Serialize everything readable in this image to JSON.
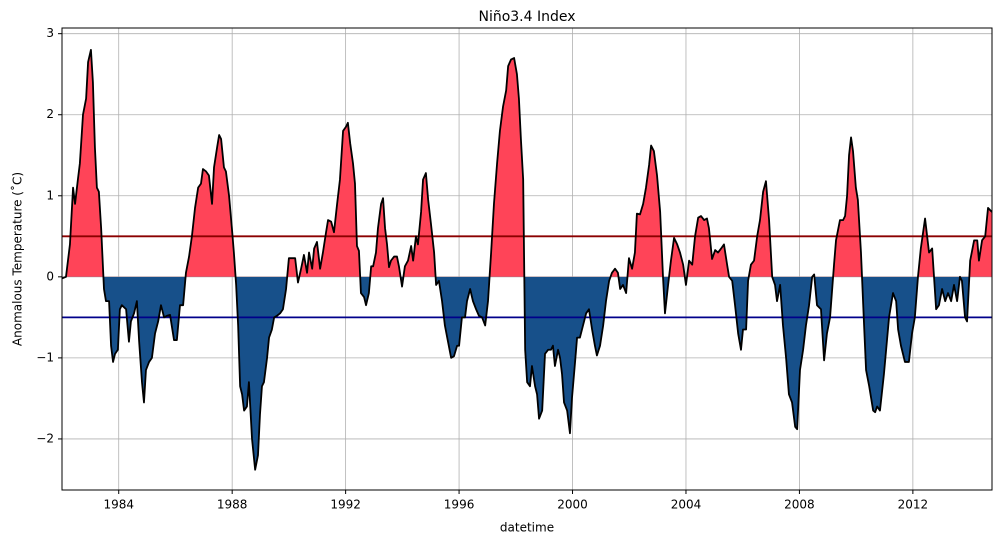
{
  "chart_data": {
    "type": "area_diverging",
    "title": "Niño3.4 Index",
    "x_label": "datetime",
    "y_label": "Anomalous Temperature (˚C)",
    "x": [
      1982.0,
      1982.14,
      1982.28,
      1982.39,
      1982.46,
      1982.56,
      1982.63,
      1982.74,
      1982.85,
      1982.92,
      1983.02,
      1983.09,
      1983.16,
      1983.23,
      1983.3,
      1983.38,
      1983.48,
      1983.55,
      1983.66,
      1983.73,
      1983.8,
      1983.87,
      1983.97,
      1984.04,
      1984.11,
      1984.26,
      1984.36,
      1984.43,
      1984.54,
      1984.64,
      1984.72,
      1984.82,
      1984.89,
      1984.96,
      1985.07,
      1985.17,
      1985.28,
      1985.39,
      1985.49,
      1985.6,
      1985.7,
      1985.81,
      1985.95,
      1986.05,
      1986.16,
      1986.27,
      1986.37,
      1986.48,
      1986.58,
      1986.69,
      1986.8,
      1986.9,
      1986.97,
      1987.08,
      1987.18,
      1987.29,
      1987.36,
      1987.47,
      1987.54,
      1987.61,
      1987.71,
      1987.78,
      1987.89,
      1987.99,
      1988.06,
      1988.14,
      1988.21,
      1988.28,
      1988.35,
      1988.42,
      1988.52,
      1988.59,
      1988.7,
      1988.81,
      1988.91,
      1988.98,
      1989.05,
      1989.12,
      1989.23,
      1989.3,
      1989.4,
      1989.48,
      1989.58,
      1989.69,
      1989.79,
      1989.9,
      1990.0,
      1990.11,
      1990.22,
      1990.32,
      1990.43,
      1990.53,
      1990.64,
      1990.71,
      1990.82,
      1990.89,
      1990.99,
      1991.1,
      1991.2,
      1991.31,
      1991.38,
      1991.49,
      1991.59,
      1991.7,
      1991.8,
      1991.91,
      1992.01,
      1992.08,
      1992.16,
      1992.26,
      1992.33,
      1992.4,
      1992.47,
      1992.54,
      1992.65,
      1992.72,
      1992.82,
      1992.9,
      1992.97,
      1993.07,
      1993.14,
      1993.25,
      1993.32,
      1993.39,
      1993.46,
      1993.53,
      1993.6,
      1993.71,
      1993.81,
      1993.88,
      1993.99,
      1994.09,
      1994.2,
      1994.31,
      1994.38,
      1994.48,
      1994.55,
      1994.66,
      1994.73,
      1994.83,
      1994.91,
      1995.01,
      1995.12,
      1995.19,
      1995.29,
      1995.4,
      1995.5,
      1995.61,
      1995.72,
      1995.82,
      1995.93,
      1996.0,
      1996.1,
      1996.21,
      1996.28,
      1996.39,
      1996.49,
      1996.6,
      1996.7,
      1996.81,
      1996.92,
      1997.02,
      1997.13,
      1997.23,
      1997.34,
      1997.44,
      1997.55,
      1997.66,
      1997.73,
      1997.83,
      1997.94,
      1998.04,
      1998.11,
      1998.18,
      1998.26,
      1998.33,
      1998.4,
      1998.5,
      1998.57,
      1998.68,
      1998.75,
      1998.82,
      1998.93,
      1999.03,
      1999.14,
      1999.24,
      1999.31,
      1999.38,
      1999.49,
      1999.56,
      1999.63,
      1999.7,
      1999.81,
      1999.91,
      1999.98,
      2000.09,
      2000.16,
      2000.26,
      2000.37,
      2000.48,
      2000.58,
      2000.69,
      2000.79,
      2000.86,
      2000.97,
      2001.08,
      2001.18,
      2001.29,
      2001.39,
      2001.5,
      2001.6,
      2001.68,
      2001.78,
      2001.89,
      2001.99,
      2002.1,
      2002.2,
      2002.27,
      2002.38,
      2002.49,
      2002.59,
      2002.7,
      2002.77,
      2002.87,
      2002.98,
      2003.09,
      2003.19,
      2003.26,
      2003.37,
      2003.47,
      2003.58,
      2003.69,
      2003.79,
      2003.9,
      2004.0,
      2004.11,
      2004.22,
      2004.32,
      2004.43,
      2004.53,
      2004.64,
      2004.74,
      2004.81,
      2004.92,
      2005.03,
      2005.13,
      2005.24,
      2005.34,
      2005.45,
      2005.52,
      2005.63,
      2005.73,
      2005.84,
      2005.94,
      2006.01,
      2006.12,
      2006.19,
      2006.29,
      2006.4,
      2006.51,
      2006.61,
      2006.72,
      2006.82,
      2006.93,
      2007.04,
      2007.14,
      2007.21,
      2007.32,
      2007.42,
      2007.53,
      2007.63,
      2007.74,
      2007.85,
      2007.92,
      2008.02,
      2008.13,
      2008.23,
      2008.34,
      2008.45,
      2008.52,
      2008.62,
      2008.76,
      2008.87,
      2008.97,
      2009.08,
      2009.22,
      2009.29,
      2009.43,
      2009.54,
      2009.61,
      2009.68,
      2009.75,
      2009.82,
      2009.89,
      2009.99,
      2010.06,
      2010.17,
      2010.28,
      2010.35,
      2010.46,
      2010.6,
      2010.67,
      2010.74,
      2010.84,
      2010.98,
      2011.16,
      2011.3,
      2011.41,
      2011.48,
      2011.58,
      2011.72,
      2011.86,
      2011.97,
      2012.07,
      2012.18,
      2012.28,
      2012.43,
      2012.57,
      2012.68,
      2012.82,
      2012.92,
      2013.03,
      2013.14,
      2013.24,
      2013.35,
      2013.45,
      2013.56,
      2013.66,
      2013.73,
      2013.84,
      2013.91,
      2014.02,
      2014.16,
      2014.27,
      2014.33,
      2014.44,
      2014.55,
      2014.65,
      2014.79
    ],
    "values": [
      -0.02,
      0,
      0.4,
      1.1,
      0.9,
      1.2,
      1.4,
      2.0,
      2.2,
      2.65,
      2.8,
      2.4,
      1.6,
      1.1,
      1.05,
      0.6,
      -0.15,
      -0.3,
      -0.3,
      -0.85,
      -1.05,
      -0.95,
      -0.9,
      -0.4,
      -0.35,
      -0.4,
      -0.8,
      -0.55,
      -0.45,
      -0.3,
      -0.8,
      -1.3,
      -1.55,
      -1.15,
      -1.05,
      -1.0,
      -0.7,
      -0.55,
      -0.35,
      -0.5,
      -0.48,
      -0.47,
      -0.78,
      -0.78,
      -0.35,
      -0.35,
      0.05,
      0.25,
      0.5,
      0.85,
      1.1,
      1.15,
      1.33,
      1.3,
      1.25,
      0.9,
      1.35,
      1.6,
      1.75,
      1.7,
      1.35,
      1.3,
      1.0,
      0.6,
      0.3,
      -0.1,
      -0.6,
      -1.35,
      -1.45,
      -1.65,
      -1.6,
      -1.3,
      -2.0,
      -2.38,
      -2.2,
      -1.7,
      -1.35,
      -1.3,
      -1.0,
      -0.75,
      -0.65,
      -0.5,
      -0.48,
      -0.45,
      -0.4,
      -0.15,
      0.23,
      0.23,
      0.23,
      -0.07,
      0.1,
      0.27,
      0.05,
      0.3,
      0.1,
      0.35,
      0.43,
      0.1,
      0.3,
      0.55,
      0.7,
      0.68,
      0.55,
      0.9,
      1.2,
      1.8,
      1.85,
      1.9,
      1.65,
      1.4,
      1.15,
      0.38,
      0.32,
      -0.2,
      -0.25,
      -0.35,
      -0.2,
      0.13,
      0.13,
      0.3,
      0.6,
      0.9,
      0.97,
      0.6,
      0.4,
      0.12,
      0.2,
      0.25,
      0.25,
      0.13,
      -0.12,
      0.13,
      0.2,
      0.38,
      0.2,
      0.5,
      0.4,
      0.8,
      1.2,
      1.28,
      0.95,
      0.65,
      0.3,
      -0.1,
      -0.05,
      -0.3,
      -0.6,
      -0.8,
      -1.0,
      -0.98,
      -0.85,
      -0.85,
      -0.5,
      -0.5,
      -0.3,
      -0.15,
      -0.3,
      -0.4,
      -0.48,
      -0.5,
      -0.6,
      -0.3,
      0.3,
      0.9,
      1.4,
      1.8,
      2.1,
      2.3,
      2.6,
      2.68,
      2.7,
      2.5,
      2.2,
      1.7,
      1.2,
      -0.9,
      -1.3,
      -1.35,
      -1.1,
      -1.35,
      -1.45,
      -1.75,
      -1.65,
      -0.95,
      -0.9,
      -0.9,
      -0.85,
      -1.1,
      -0.9,
      -1.0,
      -1.2,
      -1.55,
      -1.65,
      -1.93,
      -1.5,
      -1.05,
      -0.75,
      -0.75,
      -0.6,
      -0.45,
      -0.4,
      -0.65,
      -0.85,
      -0.97,
      -0.85,
      -0.6,
      -0.3,
      -0.05,
      0.05,
      0.1,
      0.05,
      -0.15,
      -0.1,
      -0.2,
      0.23,
      0.1,
      0.3,
      0.78,
      0.77,
      0.9,
      1.1,
      1.38,
      1.62,
      1.55,
      1.25,
      0.8,
      0.0,
      -0.45,
      -0.1,
      0.2,
      0.48,
      0.4,
      0.3,
      0.15,
      -0.1,
      0.2,
      0.15,
      0.5,
      0.73,
      0.75,
      0.7,
      0.72,
      0.6,
      0.22,
      0.33,
      0.3,
      0.35,
      0.4,
      0.15,
      0.0,
      -0.05,
      -0.35,
      -0.7,
      -0.9,
      -0.65,
      -0.65,
      -0.05,
      0.15,
      0.2,
      0.5,
      0.7,
      1.05,
      1.18,
      0.7,
      0.0,
      -0.1,
      -0.3,
      -0.1,
      -0.6,
      -1.0,
      -1.45,
      -1.55,
      -1.85,
      -1.88,
      -1.15,
      -0.9,
      -0.6,
      -0.35,
      0.0,
      0.03,
      -0.35,
      -0.4,
      -1.03,
      -0.7,
      -0.5,
      0.15,
      0.45,
      0.7,
      0.7,
      0.75,
      1.0,
      1.5,
      1.72,
      1.55,
      1.1,
      0.95,
      0.3,
      -0.6,
      -1.15,
      -1.35,
      -1.65,
      -1.67,
      -1.6,
      -1.65,
      -1.2,
      -0.5,
      -0.2,
      -0.3,
      -0.65,
      -0.85,
      -1.05,
      -1.05,
      -0.7,
      -0.5,
      0.0,
      0.35,
      0.72,
      0.3,
      0.35,
      -0.4,
      -0.35,
      -0.15,
      -0.3,
      -0.2,
      -0.3,
      -0.1,
      -0.3,
      0.0,
      -0.05,
      -0.5,
      -0.55,
      0.2,
      0.45,
      0.45,
      0.2,
      0.45,
      0.5,
      0.85,
      0.8
    ],
    "line_color": "#000000",
    "positive_color": "#ff4458",
    "negative_color": "#17508a",
    "hlines": [
      {
        "value": 0.5,
        "color": "#8b0000"
      },
      {
        "value": -0.5,
        "color": "#00008b"
      }
    ],
    "xlim": [
      1982.0,
      2014.79
    ],
    "ylim": [
      -2.63,
      3.07
    ],
    "xticks": [
      1984,
      1988,
      1992,
      1996,
      2000,
      2004,
      2008,
      2012
    ],
    "yticks": [
      {
        "value": -2,
        "label": "−2"
      },
      {
        "value": -1,
        "label": "−1"
      },
      0,
      1,
      2,
      3
    ],
    "grid": true
  }
}
